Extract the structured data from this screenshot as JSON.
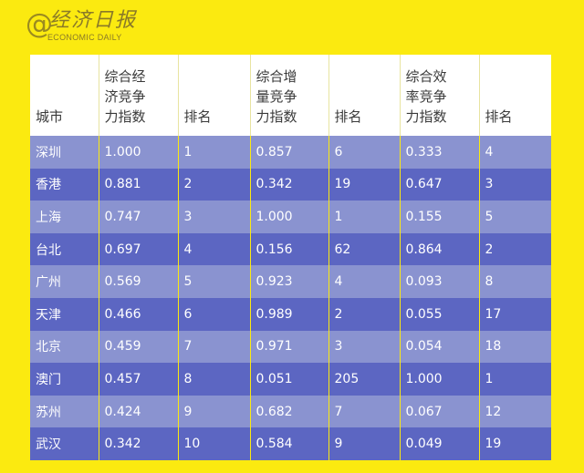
{
  "logo": {
    "at": "@",
    "chinese": "经济日报",
    "english": "ECONOMIC DAILY"
  },
  "colors": {
    "background": "#fbea10",
    "header_bg": "#ffffff",
    "row_light": "#8a93d0",
    "row_dark": "#5c66c2"
  },
  "table": {
    "headers": [
      [
        "城市"
      ],
      [
        "综合经",
        "济竞争",
        "力指数"
      ],
      [
        "排名"
      ],
      [
        "综合增",
        "量竞争",
        "力指数"
      ],
      [
        "排名"
      ],
      [
        "综合效",
        "率竞争",
        "力指数"
      ],
      [
        "排名"
      ]
    ],
    "rows": [
      [
        "深圳",
        "1.000",
        "1",
        "0.857",
        "6",
        "0.333",
        "4"
      ],
      [
        "香港",
        "0.881",
        "2",
        "0.342",
        "19",
        "0.647",
        "3"
      ],
      [
        "上海",
        "0.747",
        "3",
        "1.000",
        "1",
        "0.155",
        "5"
      ],
      [
        "台北",
        "0.697",
        "4",
        "0.156",
        "62",
        "0.864",
        "2"
      ],
      [
        "广州",
        "0.569",
        "5",
        "0.923",
        "4",
        "0.093",
        "8"
      ],
      [
        "天津",
        "0.466",
        "6",
        "0.989",
        "2",
        "0.055",
        "17"
      ],
      [
        "北京",
        "0.459",
        "7",
        "0.971",
        "3",
        "0.054",
        "18"
      ],
      [
        "澳门",
        "0.457",
        "8",
        "0.051",
        "205",
        "1.000",
        "1"
      ],
      [
        "苏州",
        "0.424",
        "9",
        "0.682",
        "7",
        "0.067",
        "12"
      ],
      [
        "武汉",
        "0.342",
        "10",
        "0.584",
        "9",
        "0.049",
        "19"
      ]
    ]
  }
}
